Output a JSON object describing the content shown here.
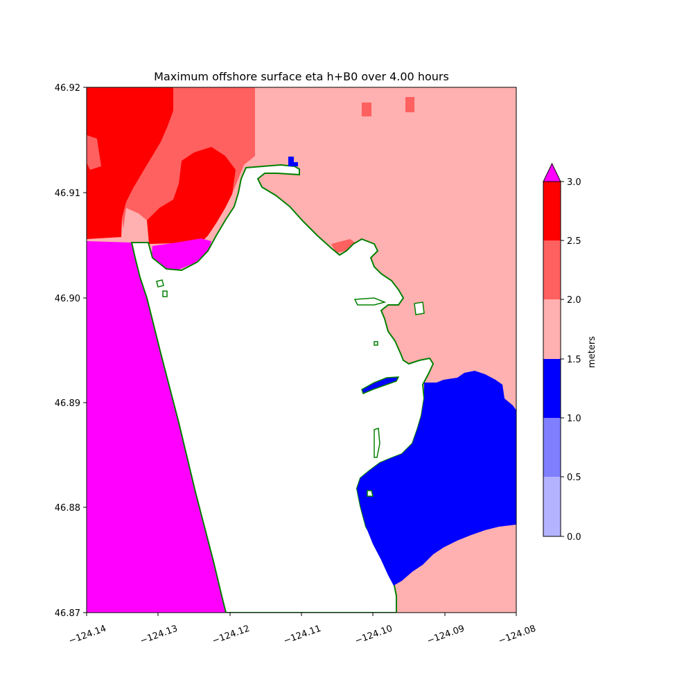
{
  "map": {
    "title": "Maximum offshore surface eta h+B0 over 4.00 hours",
    "x_ticks": [
      "−124.14",
      "−124.13",
      "−124.12",
      "−124.11",
      "−124.10",
      "−124.09",
      "−124.08"
    ],
    "y_ticks": [
      "46.92",
      "46.91",
      "46.90",
      "46.89",
      "46.88",
      "46.87"
    ],
    "extent": {
      "lon_min": -124.14,
      "lon_max": -124.08,
      "lat_min": 46.87,
      "lat_max": 46.92
    }
  },
  "colorbar": {
    "label": "meters",
    "ticks": [
      "3.0",
      "2.5",
      "2.0",
      "1.5",
      "1.0",
      "0.5",
      "0.0"
    ],
    "extend": "max",
    "colors": {
      "0.0-0.5": "#b3b3ff",
      "0.5-1.0": "#8080ff",
      "1.0-1.5": "#0000ff",
      "1.5-2.0": "#ffb0b0",
      "2.0-2.5": "#ff6060",
      "2.5-3.0": "#ff0000",
      "over": "#ff00ff"
    },
    "coastline_color": "#008000"
  }
}
